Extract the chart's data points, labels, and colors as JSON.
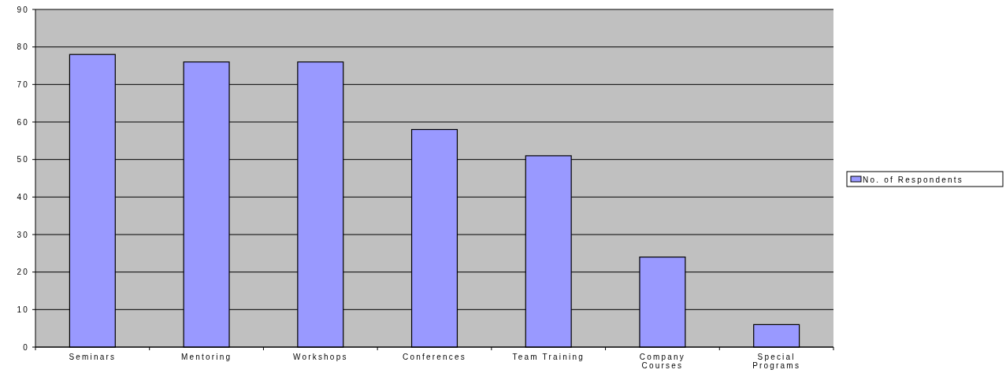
{
  "chart_data": {
    "type": "bar",
    "categories": [
      "Seminars",
      "Mentoring",
      "Workshops",
      "Conferences",
      "Team Training",
      "Company Courses",
      "Special Programs"
    ],
    "series": [
      {
        "name": "No. of Respondents",
        "color": "#9999ff",
        "values": [
          78,
          76,
          76,
          58,
          51,
          24,
          6
        ]
      }
    ],
    "ylim": [
      0,
      90
    ],
    "yticks": [
      0,
      10,
      20,
      30,
      40,
      50,
      60,
      70,
      80,
      90
    ],
    "grid": "y",
    "legend": "right"
  }
}
